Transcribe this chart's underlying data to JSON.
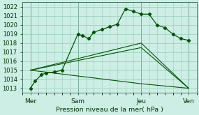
{
  "xlabel": "Pression niveau de la mer( hPa )",
  "ylim": [
    1012.5,
    1022.5
  ],
  "yticks": [
    1013,
    1014,
    1015,
    1016,
    1017,
    1018,
    1019,
    1020,
    1021,
    1022
  ],
  "background_color": "#cceee4",
  "grid_color": "#99ccbb",
  "line_color": "#005500",
  "day_labels": [
    "Mer",
    "Sam",
    "Jeu",
    "Ven"
  ],
  "day_positions": [
    0,
    3,
    7,
    10
  ],
  "series0": {
    "x": [
      0,
      0.3,
      0.7,
      1.0,
      1.5,
      2.0,
      3.0,
      3.3,
      3.7,
      4.0,
      4.5,
      5.0,
      5.5,
      6.0,
      6.5,
      7.0,
      7.5,
      8.0,
      8.5,
      9.0,
      9.5,
      10.0
    ],
    "y": [
      1013,
      1013.8,
      1014.5,
      1014.7,
      1014.8,
      1015.0,
      1019.0,
      1018.8,
      1018.5,
      1019.2,
      1019.5,
      1019.8,
      1020.1,
      1021.8,
      1021.5,
      1021.2,
      1021.2,
      1020.0,
      1019.7,
      1019.0,
      1018.5,
      1018.3
    ]
  },
  "series1": {
    "x": [
      0,
      7,
      10
    ],
    "y": [
      1015,
      1018,
      1013
    ]
  },
  "series2": {
    "x": [
      0,
      7,
      10
    ],
    "y": [
      1015,
      1017.5,
      1013
    ]
  },
  "series3": {
    "x": [
      0,
      7,
      10
    ],
    "y": [
      1015,
      1013.5,
      1013
    ]
  },
  "xlim": [
    -0.5,
    10.5
  ]
}
